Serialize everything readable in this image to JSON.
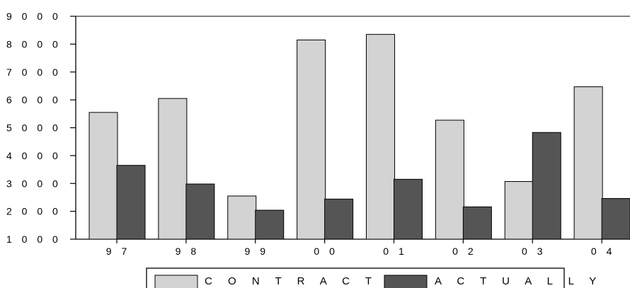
{
  "chart_data": {
    "type": "bar",
    "title": "",
    "xlabel": "",
    "ylabel": "",
    "categories": [
      "97",
      "98",
      "99",
      "00",
      "01",
      "02",
      "03",
      "04"
    ],
    "series": [
      {
        "name": "CONTRACTED",
        "color": "#d3d3d3",
        "values": [
          5550,
          6050,
          2550,
          8150,
          8350,
          5270,
          3070,
          6470
        ]
      },
      {
        "name": "ACTUALLY",
        "color": "#555555",
        "values": [
          3650,
          2980,
          2040,
          2440,
          3150,
          2160,
          4830,
          2460
        ]
      }
    ],
    "ylim": [
      1000,
      9000
    ],
    "yticks": [
      1000,
      2000,
      3000,
      4000,
      5000,
      6000,
      7000,
      8000,
      9000
    ],
    "ytick_labels": [
      "1 0 0 0",
      "2 0 0 0",
      "3 0 0 0",
      "4 0 0 0",
      "5 0 0 0",
      "6 0 0 0",
      "7 0 0 0",
      "8 0 0 0",
      "9 0 0 0"
    ],
    "xtick_labels": [
      "9 7",
      "9 8",
      "9 9",
      "0 0",
      "0 1",
      "0 2",
      "0 3",
      "0 4"
    ],
    "legend_labels": [
      "C O N T R A C T E D",
      "A C T U A L L Y"
    ],
    "legend_position": "bottom-center",
    "grid": false
  }
}
